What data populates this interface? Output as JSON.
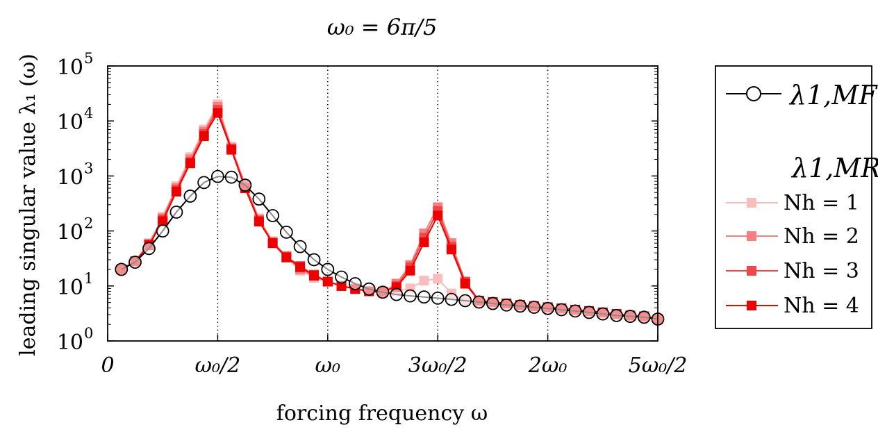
{
  "chart_data": {
    "type": "line",
    "title": "ω₀ = 6π/5",
    "xlabel": "forcing frequency ω",
    "ylabel": "leading singular value λ₁ (ω)",
    "y_scale": "log",
    "xlim": [
      0,
      3.77
    ],
    "ylim": [
      1,
      100000
    ],
    "x_ticks": [
      0,
      0.754,
      1.508,
      2.262,
      3.016,
      3.77
    ],
    "x_tick_labels": [
      "0",
      "ω₀/2",
      "ω₀",
      "3ω₀/2",
      "2ω₀",
      "5ω₀/2"
    ],
    "y_ticks": [
      1,
      10,
      100,
      1000,
      10000,
      100000
    ],
    "y_tick_labels": [
      {
        "base": "10",
        "exp": "0"
      },
      {
        "base": "10",
        "exp": "1"
      },
      {
        "base": "10",
        "exp": "2"
      },
      {
        "base": "10",
        "exp": "3"
      },
      {
        "base": "10",
        "exp": "4"
      },
      {
        "base": "10",
        "exp": "5"
      }
    ],
    "vertical_dotted_lines_at": [
      0.754,
      1.508,
      2.262,
      3.016
    ],
    "grid": false,
    "legend_placement": "right, outside plot",
    "legend_title_mr": "λ1,MR",
    "x": [
      0.094,
      0.188,
      0.283,
      0.377,
      0.471,
      0.566,
      0.66,
      0.754,
      0.848,
      0.942,
      1.037,
      1.131,
      1.225,
      1.319,
      1.414,
      1.508,
      1.602,
      1.696,
      1.791,
      1.885,
      1.979,
      2.073,
      2.168,
      2.262,
      2.356,
      2.45,
      2.545,
      2.639,
      2.733,
      2.827,
      2.922,
      3.016,
      3.11,
      3.204,
      3.299,
      3.393,
      3.487,
      3.581,
      3.676,
      3.77
    ],
    "series": [
      {
        "name": "λ1,MF",
        "color": "#000000",
        "marker": "open-circle",
        "values": [
          20,
          27,
          48,
          100,
          220,
          430,
          760,
          980,
          950,
          680,
          380,
          190,
          95,
          52,
          30,
          20,
          14.5,
          11,
          8.8,
          7.7,
          7.0,
          6.6,
          6.3,
          6.0,
          5.7,
          5.4,
          5.1,
          4.8,
          4.5,
          4.3,
          4.1,
          3.9,
          3.7,
          3.5,
          3.3,
          3.1,
          2.9,
          2.8,
          2.7,
          2.5
        ]
      },
      {
        "name": "Nh = 1",
        "color": "#fbbcbc",
        "marker": "square",
        "values": [
          20,
          28,
          60,
          180,
          650,
          2200,
          7000,
          20000,
          3400,
          700,
          170,
          65,
          33,
          19,
          14,
          12,
          10,
          9,
          8,
          7.4,
          8,
          9,
          12.5,
          13.5,
          7.3,
          5.4,
          5.1,
          4.8,
          4.5,
          4.3,
          4.1,
          3.9,
          3.7,
          3.5,
          3.3,
          3.1,
          2.9,
          2.8,
          2.7,
          2.5
        ]
      },
      {
        "name": "Nh = 2",
        "color": "#f77f7f",
        "marker": "square",
        "values": [
          20,
          28,
          58,
          170,
          600,
          2000,
          6400,
          18000,
          3200,
          680,
          160,
          63,
          35,
          20,
          15,
          12,
          10,
          9,
          8,
          7.6,
          11,
          24,
          90,
          270,
          60,
          12,
          5.4,
          5.1,
          4.8,
          4.5,
          4.3,
          4.1,
          3.9,
          3.7,
          3.5,
          3.3,
          3.1,
          2.9,
          2.8,
          2.5
        ]
      },
      {
        "name": "Nh = 3",
        "color": "#f24646",
        "marker": "square",
        "values": [
          20,
          28,
          57,
          160,
          560,
          1800,
          5800,
          16000,
          3100,
          650,
          155,
          61,
          34,
          23,
          16,
          12,
          10,
          8.9,
          8,
          7.8,
          10,
          22,
          75,
          230,
          52,
          12,
          5.4,
          5.1,
          4.8,
          4.5,
          4.3,
          4.1,
          3.9,
          3.7,
          3.5,
          3.3,
          3.1,
          2.9,
          2.8,
          2.5
        ]
      },
      {
        "name": "Nh = 4",
        "color": "#ee0000",
        "marker": "square",
        "values": [
          20,
          28,
          55,
          150,
          520,
          1700,
          5300,
          14000,
          3000,
          600,
          148,
          60,
          33,
          22,
          15.5,
          12,
          10,
          8.8,
          8,
          7.9,
          9.5,
          19,
          62,
          190,
          46,
          11,
          5.4,
          5.1,
          4.8,
          4.5,
          4.3,
          4.1,
          3.9,
          3.7,
          3.5,
          3.3,
          3.1,
          2.9,
          2.8,
          2.5
        ]
      }
    ]
  }
}
